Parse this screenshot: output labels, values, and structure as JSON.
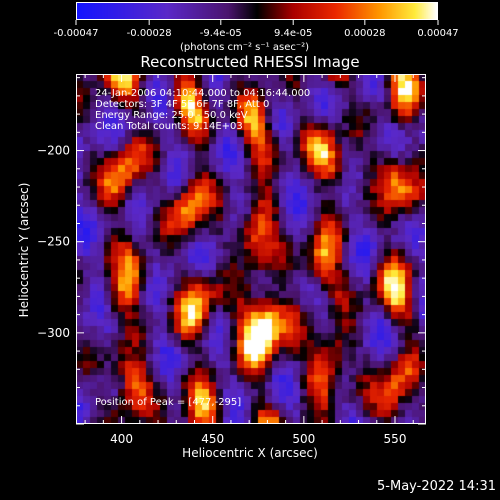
{
  "chart_data": {
    "type": "heatmap",
    "title": "Reconstructed RHESSI Image",
    "xlabel": "Heliocentric X (arcsec)",
    "ylabel": "Heliocentric Y (arcsec)",
    "xlim": [
      375,
      567
    ],
    "ylim": [
      -350,
      -158
    ],
    "xticks": [
      400,
      450,
      500,
      550
    ],
    "yticks": [
      -200,
      -250,
      -300
    ],
    "colorbar": {
      "label": "(photons cm⁻² s⁻¹ asec⁻²)",
      "range": [
        -0.00047,
        0.00047
      ],
      "ticks": [
        -0.00047,
        -0.00028,
        -9.4e-05,
        9.4e-05,
        0.00028,
        0.00047
      ],
      "tick_labels": [
        "-0.00047",
        "-0.00028",
        "-9.4e-05",
        "9.4e-05",
        "0.00028",
        "0.00047"
      ]
    },
    "annotations": [
      "24-Jan-2006 04:10:44.000 to 04:16:44.000",
      "Detectors: 3F 4F 5F 6F 7F 8F, Att 0",
      "Energy Range: 25.0 - 50.0 keV",
      "Clean     Total counts: 9.14E+03",
      "Position of Peak = [477,-295]"
    ],
    "peak": {
      "x": 477,
      "y": -295
    },
    "bright_streaks": [
      {
        "x": 402,
        "y0": -350,
        "y1": -158
      },
      {
        "x": 440,
        "y0": -350,
        "y1": -158
      },
      {
        "x": 477,
        "y0": -350,
        "y1": -158
      },
      {
        "x": 514,
        "y0": -350,
        "y1": -158
      },
      {
        "x": 552,
        "y0": -350,
        "y1": -158
      }
    ]
  },
  "footer": {
    "timestamp": "5-May-2022 14:31"
  }
}
